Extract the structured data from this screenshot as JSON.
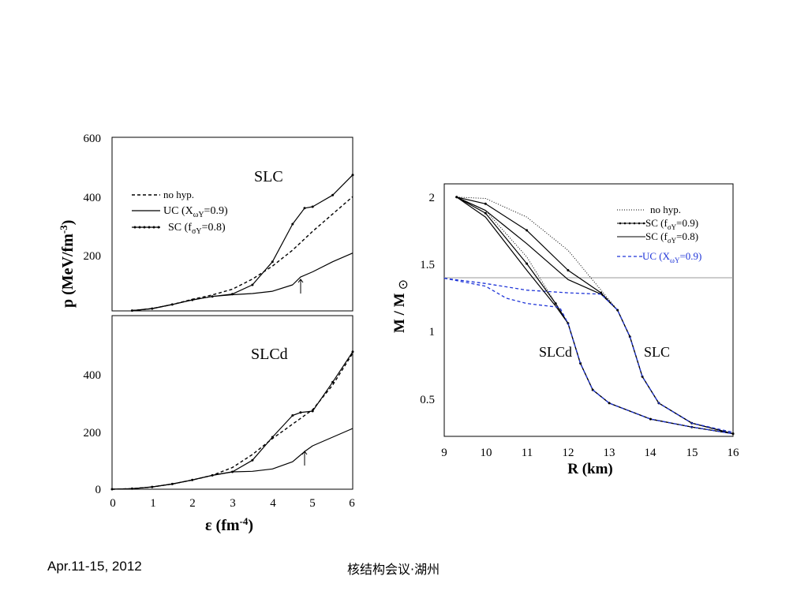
{
  "footer": {
    "date": "Apr.11-15, 2012",
    "conference": "核结构会议·湖州"
  },
  "chart_data": [
    {
      "type": "line",
      "panel_label": "SLC",
      "ylabel": "p (MeV/fm-3)",
      "xlim": [
        0,
        6
      ],
      "ylim": [
        0,
        600
      ],
      "yticks": [
        "200",
        "400",
        "600"
      ],
      "legend": {
        "placement": "top-left",
        "entries": [
          "no hyp.",
          "UC (XωY=0.9)",
          "SC (fσY=0.8)"
        ]
      },
      "annotation": "arrow at ε ≈ 4.7",
      "series": [
        {
          "name": "no hyp.",
          "style": "dashed",
          "x": [
            0.5,
            1,
            1.5,
            2,
            2.5,
            3,
            3.5,
            4,
            4.5,
            5,
            5.5,
            6
          ],
          "y": [
            1,
            8,
            22,
            40,
            55,
            75,
            110,
            155,
            210,
            275,
            335,
            395
          ]
        },
        {
          "name": "UC (XωY=0.9)",
          "style": "solid",
          "x": [
            0.5,
            1,
            1.5,
            2,
            2.5,
            3,
            3.5,
            4,
            4.5,
            4.7,
            5,
            5.5,
            6
          ],
          "y": [
            1,
            8,
            22,
            38,
            50,
            56,
            60,
            68,
            90,
            117,
            135,
            170,
            200
          ]
        },
        {
          "name": "SC (fσY=0.8)",
          "style": "dotted-line",
          "x": [
            0.5,
            1,
            1.5,
            2,
            2.5,
            3,
            3.5,
            4,
            4.5,
            4.8,
            5,
            5.5,
            6
          ],
          "y": [
            1,
            8,
            22,
            38,
            50,
            58,
            90,
            170,
            300,
            355,
            360,
            400,
            470
          ]
        }
      ]
    },
    {
      "type": "line",
      "panel_label": "SLCd",
      "xlabel": "ε (fm-4)",
      "xlim": [
        0,
        6
      ],
      "ylim": [
        0,
        600
      ],
      "xticks": [
        "0",
        "1",
        "2",
        "3",
        "4",
        "5",
        "6"
      ],
      "yticks": [
        "0",
        "200",
        "400"
      ],
      "annotation": "arrow at ε ≈ 4.8",
      "series": [
        {
          "style": "dashed",
          "x": [
            0,
            0.5,
            1,
            1.5,
            2,
            2.5,
            3,
            3.5,
            4,
            4.5,
            5,
            5.5,
            6
          ],
          "y": [
            0,
            2,
            8,
            18,
            32,
            48,
            75,
            120,
            175,
            225,
            275,
            360,
            470
          ]
        },
        {
          "style": "solid",
          "x": [
            0,
            0.5,
            1,
            1.5,
            2,
            2.5,
            3,
            3.5,
            4,
            4.5,
            4.8,
            5,
            5.5,
            6
          ],
          "y": [
            0,
            2,
            8,
            18,
            32,
            48,
            60,
            62,
            70,
            95,
            130,
            150,
            180,
            210
          ]
        },
        {
          "style": "dotted-line",
          "x": [
            0,
            0.5,
            1,
            1.5,
            2,
            2.5,
            3,
            3.5,
            4,
            4.5,
            4.7,
            5,
            5.5,
            6
          ],
          "y": [
            0,
            2,
            8,
            18,
            32,
            48,
            60,
            100,
            180,
            255,
            265,
            270,
            370,
            475
          ]
        }
      ]
    },
    {
      "type": "line",
      "xlabel": "R (km)",
      "ylabel": "M / M⊙",
      "xlim": [
        9,
        16
      ],
      "ylim": [
        0.2,
        2.1
      ],
      "xticks": [
        "9",
        "10",
        "11",
        "12",
        "13",
        "14",
        "15",
        "16"
      ],
      "yticks": [
        "0.5",
        "1",
        "1.5",
        "2"
      ],
      "reference_line": 1.4,
      "panel_labels": [
        "SLCd",
        "SLC"
      ],
      "legend": {
        "placement": "top-right",
        "entries": [
          "no hyp.",
          "SC (fσY=0.9)",
          "SC (fσY=0.8)",
          "UC (XωY=0.9)"
        ]
      },
      "colors": {
        "uc": "#1f35d8",
        "ref": "#999999"
      },
      "series": [
        {
          "name": "no hyp.",
          "style": "dotted",
          "x": [
            9.3,
            10,
            11,
            12,
            12.8,
            13.2,
            13.5,
            13.8,
            14.2,
            15,
            16
          ],
          "y": [
            2,
            1.99,
            1.85,
            1.6,
            1.3,
            1.15,
            0.95,
            0.65,
            0.45,
            0.3,
            0.22
          ]
        },
        {
          "name": "SC (fσY=0.9)",
          "style": "dotted-line",
          "x": [
            9.3,
            10,
            11,
            12,
            12.8,
            13.2,
            13.5,
            13.8,
            14.2,
            15,
            16
          ],
          "y": [
            2,
            1.95,
            1.75,
            1.45,
            1.28,
            1.15,
            0.95,
            0.65,
            0.45,
            0.3,
            0.22
          ]
        },
        {
          "name": "SC (fσY=0.8)",
          "style": "solid",
          "x": [
            9.3,
            10,
            11,
            12,
            12.8,
            13.2,
            13.5,
            13.8,
            14.2,
            15,
            16
          ],
          "y": [
            2,
            1.9,
            1.65,
            1.38,
            1.27,
            1.15,
            0.95,
            0.65,
            0.45,
            0.3,
            0.22
          ]
        },
        {
          "name": "UC (XωY=0.9)",
          "style": "blue-dashed",
          "x": [
            9,
            10,
            11,
            12,
            12.8,
            13.2,
            13.5,
            13.8,
            14.2,
            15,
            16
          ],
          "y": [
            1.39,
            1.35,
            1.3,
            1.28,
            1.27,
            1.15,
            0.95,
            0.65,
            0.45,
            0.3,
            0.23
          ]
        },
        {
          "style": "dotted",
          "x": [
            9.3,
            10,
            11,
            11.5,
            12,
            12.3,
            12.6,
            13,
            14,
            15,
            16
          ],
          "y": [
            2,
            1.9,
            1.55,
            1.3,
            1.05,
            0.75,
            0.55,
            0.45,
            0.33,
            0.27,
            0.22
          ]
        },
        {
          "style": "dotted-line",
          "x": [
            9.3,
            10,
            11,
            11.7,
            12,
            12.3,
            12.6,
            13,
            14,
            15,
            16
          ],
          "y": [
            2,
            1.88,
            1.5,
            1.2,
            1.05,
            0.75,
            0.55,
            0.45,
            0.33,
            0.27,
            0.22
          ]
        },
        {
          "style": "solid",
          "x": [
            9.3,
            10,
            11,
            11.7,
            12,
            12.3,
            12.6,
            13,
            14,
            15,
            16
          ],
          "y": [
            2,
            1.85,
            1.45,
            1.18,
            1.05,
            0.75,
            0.55,
            0.45,
            0.33,
            0.27,
            0.22
          ]
        },
        {
          "style": "blue-dashed",
          "x": [
            9,
            10,
            10.5,
            11,
            11.8,
            12,
            12.3,
            12.6,
            13,
            14,
            15,
            16
          ],
          "y": [
            1.39,
            1.33,
            1.24,
            1.2,
            1.17,
            1.05,
            0.75,
            0.55,
            0.45,
            0.33,
            0.27,
            0.22
          ]
        }
      ]
    }
  ]
}
